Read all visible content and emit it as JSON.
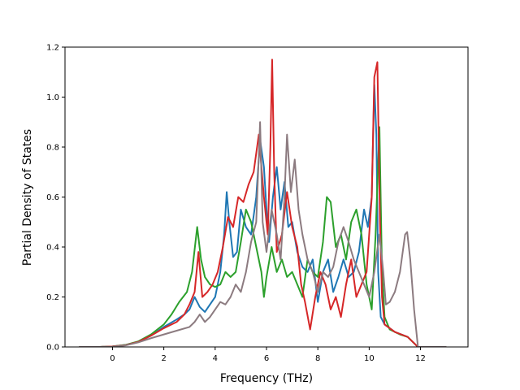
{
  "chart_data": {
    "type": "line",
    "title": "",
    "xlabel": "Frequency (THz)",
    "ylabel": "Partial Density of States",
    "xlim": [
      -1.85,
      13.85
    ],
    "ylim": [
      0.0,
      1.2
    ],
    "xticks": [
      "0",
      "2",
      "4",
      "6",
      "8",
      "10",
      "12"
    ],
    "yticks": [
      "0.0",
      "0.2",
      "0.4",
      "0.6",
      "0.8",
      "1.0",
      "1.2"
    ],
    "grid": false,
    "legend": "none",
    "series": [
      {
        "color": "#1f77b4",
        "points": [
          [
            -1.3,
            0
          ],
          [
            -0.5,
            0
          ],
          [
            0,
            0.002
          ],
          [
            0.5,
            0.008
          ],
          [
            1,
            0.02
          ],
          [
            1.5,
            0.045
          ],
          [
            2,
            0.08
          ],
          [
            2.5,
            0.11
          ],
          [
            2.8,
            0.13
          ],
          [
            3,
            0.15
          ],
          [
            3.2,
            0.2
          ],
          [
            3.4,
            0.16
          ],
          [
            3.6,
            0.14
          ],
          [
            3.8,
            0.17
          ],
          [
            4,
            0.2
          ],
          [
            4.2,
            0.3
          ],
          [
            4.35,
            0.45
          ],
          [
            4.45,
            0.62
          ],
          [
            4.55,
            0.5
          ],
          [
            4.7,
            0.36
          ],
          [
            4.85,
            0.38
          ],
          [
            5,
            0.55
          ],
          [
            5.2,
            0.48
          ],
          [
            5.4,
            0.45
          ],
          [
            5.6,
            0.6
          ],
          [
            5.75,
            0.83
          ],
          [
            5.9,
            0.72
          ],
          [
            6,
            0.55
          ],
          [
            6.1,
            0.42
          ],
          [
            6.25,
            0.6
          ],
          [
            6.4,
            0.72
          ],
          [
            6.55,
            0.55
          ],
          [
            6.7,
            0.66
          ],
          [
            6.85,
            0.48
          ],
          [
            7,
            0.5
          ],
          [
            7.2,
            0.38
          ],
          [
            7.4,
            0.32
          ],
          [
            7.6,
            0.3
          ],
          [
            7.8,
            0.35
          ],
          [
            8,
            0.18
          ],
          [
            8.2,
            0.3
          ],
          [
            8.4,
            0.35
          ],
          [
            8.6,
            0.22
          ],
          [
            8.8,
            0.28
          ],
          [
            9,
            0.35
          ],
          [
            9.2,
            0.28
          ],
          [
            9.4,
            0.3
          ],
          [
            9.6,
            0.38
          ],
          [
            9.8,
            0.55
          ],
          [
            9.95,
            0.48
          ],
          [
            10.1,
            0.6
          ],
          [
            10.2,
            1.05
          ],
          [
            10.28,
            0.85
          ],
          [
            10.35,
            0.3
          ],
          [
            10.45,
            0.12
          ],
          [
            10.6,
            0.09
          ],
          [
            11,
            0.06
          ],
          [
            11.5,
            0.04
          ],
          [
            11.8,
            0.01
          ],
          [
            11.9,
            0
          ],
          [
            13,
            0
          ]
        ]
      },
      {
        "color": "#2ca02c",
        "points": [
          [
            -1.3,
            0
          ],
          [
            -0.5,
            0
          ],
          [
            0,
            0.002
          ],
          [
            0.5,
            0.008
          ],
          [
            1,
            0.022
          ],
          [
            1.5,
            0.05
          ],
          [
            2,
            0.09
          ],
          [
            2.3,
            0.13
          ],
          [
            2.6,
            0.18
          ],
          [
            2.9,
            0.22
          ],
          [
            3.1,
            0.3
          ],
          [
            3.3,
            0.48
          ],
          [
            3.45,
            0.35
          ],
          [
            3.6,
            0.28
          ],
          [
            3.8,
            0.25
          ],
          [
            4,
            0.24
          ],
          [
            4.2,
            0.25
          ],
          [
            4.4,
            0.3
          ],
          [
            4.6,
            0.28
          ],
          [
            4.8,
            0.3
          ],
          [
            5,
            0.42
          ],
          [
            5.2,
            0.55
          ],
          [
            5.4,
            0.5
          ],
          [
            5.6,
            0.4
          ],
          [
            5.8,
            0.3
          ],
          [
            5.9,
            0.2
          ],
          [
            6,
            0.28
          ],
          [
            6.2,
            0.4
          ],
          [
            6.4,
            0.3
          ],
          [
            6.6,
            0.35
          ],
          [
            6.8,
            0.28
          ],
          [
            7,
            0.3
          ],
          [
            7.2,
            0.25
          ],
          [
            7.4,
            0.2
          ],
          [
            7.6,
            0.35
          ],
          [
            7.8,
            0.3
          ],
          [
            8,
            0.28
          ],
          [
            8.2,
            0.42
          ],
          [
            8.35,
            0.6
          ],
          [
            8.5,
            0.58
          ],
          [
            8.7,
            0.4
          ],
          [
            8.9,
            0.45
          ],
          [
            9.1,
            0.35
          ],
          [
            9.3,
            0.5
          ],
          [
            9.5,
            0.55
          ],
          [
            9.7,
            0.45
          ],
          [
            9.9,
            0.25
          ],
          [
            10.1,
            0.15
          ],
          [
            10.25,
            0.45
          ],
          [
            10.4,
            0.88
          ],
          [
            10.5,
            0.3
          ],
          [
            10.6,
            0.12
          ],
          [
            10.8,
            0.07
          ],
          [
            11.2,
            0.05
          ],
          [
            11.5,
            0.04
          ],
          [
            11.8,
            0.01
          ],
          [
            11.9,
            0
          ],
          [
            13,
            0
          ]
        ]
      },
      {
        "color": "#d62728",
        "points": [
          [
            -1.3,
            0
          ],
          [
            -0.5,
            0
          ],
          [
            0,
            0.002
          ],
          [
            0.5,
            0.007
          ],
          [
            1,
            0.02
          ],
          [
            1.5,
            0.045
          ],
          [
            2,
            0.075
          ],
          [
            2.5,
            0.1
          ],
          [
            2.8,
            0.13
          ],
          [
            3,
            0.17
          ],
          [
            3.2,
            0.22
          ],
          [
            3.35,
            0.38
          ],
          [
            3.5,
            0.2
          ],
          [
            3.7,
            0.22
          ],
          [
            3.9,
            0.25
          ],
          [
            4.1,
            0.3
          ],
          [
            4.3,
            0.4
          ],
          [
            4.5,
            0.52
          ],
          [
            4.7,
            0.48
          ],
          [
            4.9,
            0.6
          ],
          [
            5.1,
            0.58
          ],
          [
            5.3,
            0.65
          ],
          [
            5.5,
            0.7
          ],
          [
            5.7,
            0.85
          ],
          [
            5.9,
            0.6
          ],
          [
            6.05,
            0.45
          ],
          [
            6.15,
            0.8
          ],
          [
            6.22,
            1.15
          ],
          [
            6.3,
            0.7
          ],
          [
            6.4,
            0.38
          ],
          [
            6.6,
            0.45
          ],
          [
            6.8,
            0.62
          ],
          [
            7,
            0.48
          ],
          [
            7.2,
            0.4
          ],
          [
            7.35,
            0.25
          ],
          [
            7.5,
            0.18
          ],
          [
            7.7,
            0.07
          ],
          [
            7.9,
            0.2
          ],
          [
            8.1,
            0.3
          ],
          [
            8.3,
            0.25
          ],
          [
            8.5,
            0.15
          ],
          [
            8.7,
            0.2
          ],
          [
            8.9,
            0.12
          ],
          [
            9.1,
            0.25
          ],
          [
            9.3,
            0.35
          ],
          [
            9.5,
            0.2
          ],
          [
            9.7,
            0.25
          ],
          [
            9.9,
            0.3
          ],
          [
            10.1,
            0.6
          ],
          [
            10.2,
            1.08
          ],
          [
            10.32,
            1.14
          ],
          [
            10.42,
            0.5
          ],
          [
            10.5,
            0.2
          ],
          [
            10.6,
            0.09
          ],
          [
            11,
            0.06
          ],
          [
            11.5,
            0.04
          ],
          [
            11.8,
            0.01
          ],
          [
            11.9,
            0
          ],
          [
            13,
            0
          ]
        ]
      },
      {
        "color": "#8c7b80",
        "points": [
          [
            -1.3,
            0
          ],
          [
            -0.5,
            0
          ],
          [
            0,
            0.001
          ],
          [
            0.5,
            0.006
          ],
          [
            1,
            0.018
          ],
          [
            1.5,
            0.035
          ],
          [
            2,
            0.05
          ],
          [
            2.5,
            0.065
          ],
          [
            3,
            0.08
          ],
          [
            3.2,
            0.1
          ],
          [
            3.4,
            0.13
          ],
          [
            3.6,
            0.1
          ],
          [
            3.8,
            0.12
          ],
          [
            4,
            0.15
          ],
          [
            4.2,
            0.18
          ],
          [
            4.4,
            0.17
          ],
          [
            4.6,
            0.2
          ],
          [
            4.8,
            0.25
          ],
          [
            5,
            0.22
          ],
          [
            5.2,
            0.3
          ],
          [
            5.4,
            0.42
          ],
          [
            5.6,
            0.5
          ],
          [
            5.75,
            0.9
          ],
          [
            5.85,
            0.5
          ],
          [
            6,
            0.38
          ],
          [
            6.2,
            0.55
          ],
          [
            6.4,
            0.45
          ],
          [
            6.55,
            0.35
          ],
          [
            6.7,
            0.6
          ],
          [
            6.8,
            0.85
          ],
          [
            6.95,
            0.62
          ],
          [
            7.1,
            0.75
          ],
          [
            7.25,
            0.55
          ],
          [
            7.4,
            0.45
          ],
          [
            7.6,
            0.35
          ],
          [
            7.8,
            0.3
          ],
          [
            8,
            0.22
          ],
          [
            8.2,
            0.3
          ],
          [
            8.4,
            0.28
          ],
          [
            8.6,
            0.32
          ],
          [
            8.8,
            0.42
          ],
          [
            9,
            0.48
          ],
          [
            9.2,
            0.42
          ],
          [
            9.4,
            0.35
          ],
          [
            9.6,
            0.3
          ],
          [
            9.8,
            0.25
          ],
          [
            10,
            0.2
          ],
          [
            10.2,
            0.3
          ],
          [
            10.4,
            0.45
          ],
          [
            10.55,
            0.3
          ],
          [
            10.65,
            0.17
          ],
          [
            10.8,
            0.18
          ],
          [
            11,
            0.22
          ],
          [
            11.2,
            0.3
          ],
          [
            11.4,
            0.45
          ],
          [
            11.48,
            0.46
          ],
          [
            11.6,
            0.35
          ],
          [
            11.75,
            0.15
          ],
          [
            11.85,
            0.05
          ],
          [
            11.9,
            0
          ],
          [
            13,
            0
          ]
        ]
      }
    ]
  }
}
